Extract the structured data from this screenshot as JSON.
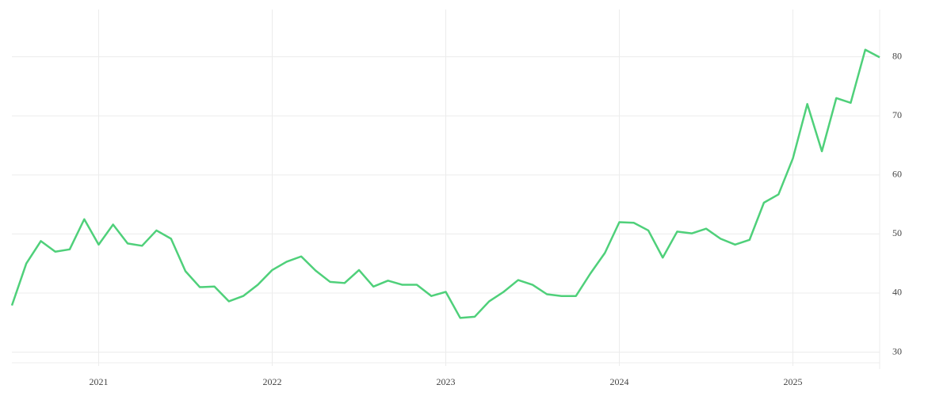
{
  "chart_data": {
    "type": "line",
    "x": [
      2020.5,
      2020.583,
      2020.667,
      2020.75,
      2020.833,
      2020.917,
      2021,
      2021.083,
      2021.167,
      2021.25,
      2021.333,
      2021.417,
      2021.5,
      2021.583,
      2021.667,
      2021.75,
      2021.833,
      2021.917,
      2022,
      2022.083,
      2022.167,
      2022.25,
      2022.333,
      2022.417,
      2022.5,
      2022.583,
      2022.667,
      2022.75,
      2022.833,
      2022.917,
      2023,
      2023.083,
      2023.167,
      2023.25,
      2023.333,
      2023.417,
      2023.5,
      2023.583,
      2023.667,
      2023.75,
      2023.833,
      2023.917,
      2024,
      2024.083,
      2024.167,
      2024.25,
      2024.333,
      2024.417,
      2024.5,
      2024.583,
      2024.667,
      2024.75,
      2024.833,
      2024.917,
      2025,
      2025.083,
      2025.167,
      2025.25,
      2025.333,
      2025.417,
      2025.5
    ],
    "values": [
      37.9,
      45.0,
      48.8,
      47.0,
      47.4,
      52.5,
      48.2,
      51.6,
      48.4,
      48.0,
      50.6,
      49.2,
      43.7,
      41.0,
      41.1,
      38.6,
      39.5,
      41.4,
      43.9,
      45.3,
      46.2,
      43.8,
      41.9,
      41.7,
      43.9,
      41.1,
      42.1,
      41.4,
      41.4,
      39.5,
      40.2,
      35.8,
      36.0,
      38.6,
      40.2,
      42.2,
      41.4,
      39.8,
      39.5,
      39.5,
      43.3,
      46.8,
      52.0,
      51.9,
      50.6,
      46.0,
      50.4,
      50.1,
      50.9,
      49.2,
      48.2,
      49.0,
      55.3,
      56.7,
      62.8,
      72.0,
      64.0,
      73.0,
      72.2,
      81.2,
      79.9
    ],
    "color": "#4fd07a",
    "xlim": [
      2020.5,
      2025.5
    ],
    "xticks": [
      2021,
      2022,
      2023,
      2024,
      2025
    ],
    "ylim": [
      28.2,
      88
    ],
    "yticks": [
      30,
      40,
      50,
      60,
      70,
      80
    ],
    "grid": true
  }
}
